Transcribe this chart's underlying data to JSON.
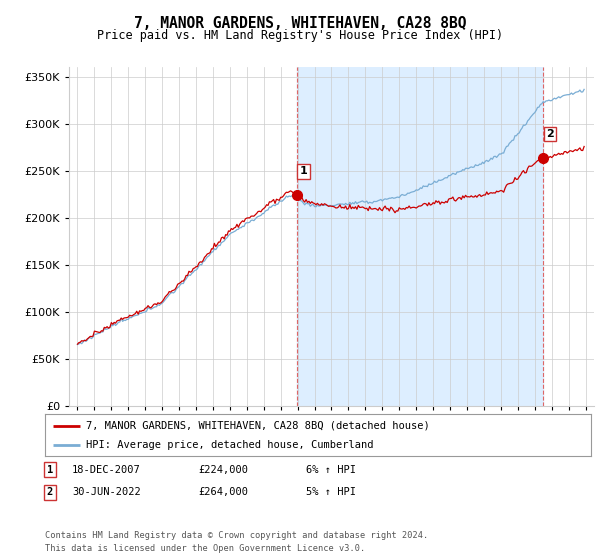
{
  "title": "7, MANOR GARDENS, WHITEHAVEN, CA28 8BQ",
  "subtitle": "Price paid vs. HM Land Registry's House Price Index (HPI)",
  "legend_line1": "7, MANOR GARDENS, WHITEHAVEN, CA28 8BQ (detached house)",
  "legend_line2": "HPI: Average price, detached house, Cumberland",
  "footnote1": "Contains HM Land Registry data © Crown copyright and database right 2024.",
  "footnote2": "This data is licensed under the Open Government Licence v3.0.",
  "sale1_label": "1",
  "sale1_date": "18-DEC-2007",
  "sale1_price": "£224,000",
  "sale1_hpi": "6% ↑ HPI",
  "sale2_label": "2",
  "sale2_date": "30-JUN-2022",
  "sale2_price": "£264,000",
  "sale2_hpi": "5% ↑ HPI",
  "red_color": "#cc0000",
  "blue_color": "#7aadd4",
  "shade_color": "#ddeeff",
  "vline_color": "#dd6666",
  "grid_color": "#cccccc",
  "bg_color": "#ffffff",
  "sale1_x": 2007.97,
  "sale1_y": 224000,
  "sale2_x": 2022.5,
  "sale2_y": 264000,
  "vline1_x": 2007.97,
  "vline2_x": 2022.5,
  "ylim": [
    0,
    360000
  ],
  "xlim_start": 1994.5,
  "xlim_end": 2025.5
}
